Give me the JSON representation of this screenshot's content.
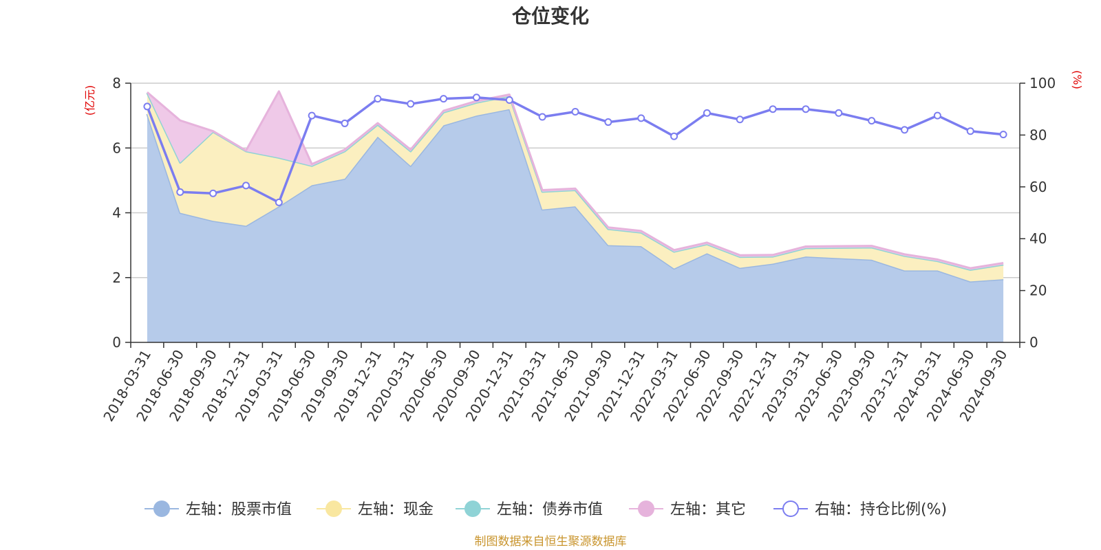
{
  "chart_data": {
    "type": "area",
    "title": "仓位变化",
    "source": "制图数据来自恒生聚源数据库",
    "left_axis": {
      "unit": "(亿元)",
      "range": [
        0,
        8
      ],
      "ticks": [
        "0",
        "2",
        "4",
        "6",
        "8"
      ]
    },
    "right_axis": {
      "unit": "(%)",
      "range": [
        0,
        100
      ],
      "ticks": [
        "0",
        "20",
        "40",
        "60",
        "80",
        "100"
      ]
    },
    "x": [
      "2018-03-31",
      "2018-06-30",
      "2018-09-30",
      "2018-12-31",
      "2019-03-31",
      "2019-06-30",
      "2019-09-30",
      "2019-12-31",
      "2020-03-31",
      "2020-06-30",
      "2020-09-30",
      "2020-12-31",
      "2021-03-31",
      "2021-06-30",
      "2021-09-30",
      "2021-12-31",
      "2022-03-31",
      "2022-06-30",
      "2022-09-30",
      "2022-12-31",
      "2023-03-31",
      "2023-06-30",
      "2023-09-30",
      "2023-12-31",
      "2024-03-31",
      "2024-06-30",
      "2024-09-30"
    ],
    "grid": "horizontal",
    "legend_position": "bottom",
    "series": [
      {
        "name": "左轴：股票市值",
        "axis": "left",
        "stack": true,
        "color": "#9ab7e0",
        "fill": "#b6cbea",
        "values": [
          7.05,
          4.0,
          3.75,
          3.6,
          4.2,
          4.85,
          5.05,
          6.35,
          5.45,
          6.7,
          7.0,
          7.2,
          4.1,
          4.2,
          3.0,
          2.97,
          2.28,
          2.75,
          2.3,
          2.43,
          2.65,
          2.6,
          2.55,
          2.22,
          2.22,
          1.88,
          1.95
        ]
      },
      {
        "name": "左轴：现金",
        "axis": "left",
        "stack": true,
        "color": "#f9e7a0",
        "fill": "#fbefc0",
        "values": [
          0.65,
          1.55,
          2.75,
          2.3,
          1.5,
          0.6,
          0.85,
          0.37,
          0.45,
          0.4,
          0.4,
          0.4,
          0.55,
          0.5,
          0.5,
          0.42,
          0.52,
          0.28,
          0.34,
          0.22,
          0.26,
          0.32,
          0.38,
          0.45,
          0.29,
          0.36,
          0.45
        ]
      },
      {
        "name": "左轴：债券市值",
        "axis": "left",
        "stack": true,
        "color": "#8fd3d6",
        "fill": "#a8dcdf",
        "values": [
          0,
          0,
          0,
          0,
          0,
          0,
          0,
          0,
          0,
          0,
          0,
          0,
          0,
          0,
          0,
          0,
          0,
          0,
          0,
          0,
          0,
          0,
          0,
          0,
          0,
          0,
          0
        ]
      },
      {
        "name": "左轴：其它",
        "axis": "left",
        "stack": true,
        "color": "#e6b3dc",
        "fill": "#efc9e8",
        "values": [
          0.02,
          1.3,
          0.02,
          0.02,
          2.05,
          0.05,
          0.05,
          0.05,
          0.05,
          0.05,
          0.05,
          0.05,
          0.05,
          0.05,
          0.05,
          0.05,
          0.05,
          0.05,
          0.05,
          0.05,
          0.05,
          0.05,
          0.05,
          0.05,
          0.05,
          0.05,
          0.05
        ]
      },
      {
        "name": "右轴：持仓比例(%)",
        "axis": "right",
        "type": "line",
        "color": "#7b7df0",
        "values": [
          91,
          58,
          57.5,
          60.5,
          54,
          87.5,
          84.5,
          94,
          92,
          94,
          94.5,
          93.5,
          87,
          89,
          85,
          86.5,
          79.5,
          88.5,
          86,
          90,
          90,
          88.5,
          85.5,
          82,
          87.5,
          81.5,
          80.2
        ]
      }
    ]
  }
}
